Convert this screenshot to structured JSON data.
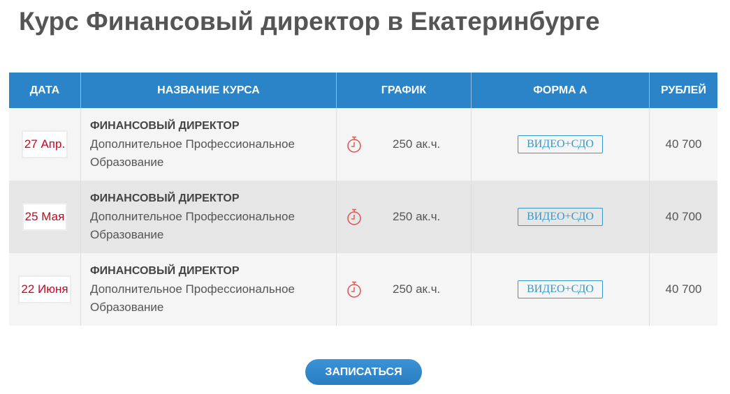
{
  "title": "Курс Финансовый директор в Екатеринбурге",
  "table": {
    "headers": [
      "ДАТА",
      "НАЗВАНИЕ КУРСА",
      "ГРАФИК",
      "ФОРМА А",
      "РУБЛЕЙ"
    ],
    "rows": [
      {
        "date": "27 Апр.",
        "course": "ФИНАНСОВЫЙ ДИРЕКТОР",
        "desc": "Дополнительное Профессиональное Образование",
        "icon": "stopwatch-icon",
        "hours": "250 ак.ч.",
        "form": "ВИДЕО+СДО",
        "price": "40 700"
      },
      {
        "date": "25 Мая",
        "course": "ФИНАНСОВЫЙ ДИРЕКТОР",
        "desc": "Дополнительное Профессиональное Образование",
        "icon": "stopwatch-icon",
        "hours": "250 ак.ч.",
        "form": "ВИДЕО+СДО",
        "price": "40 700"
      },
      {
        "date": "22 Июня",
        "course": "ФИНАНСОВЫЙ ДИРЕКТОР",
        "desc": "Дополнительное Профессиональное Образование",
        "icon": "stopwatch-icon",
        "hours": "250 ак.ч.",
        "form": "ВИДЕО+СДО",
        "price": "40 700"
      }
    ]
  },
  "signup_label": "ЗАПИСАТЬСЯ",
  "colors": {
    "header": "#2b84c8",
    "date": "#d0021b",
    "badge": "#3399cc",
    "icon": "#e05a5a"
  }
}
